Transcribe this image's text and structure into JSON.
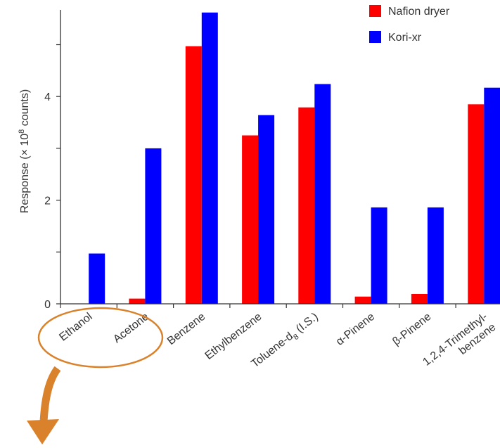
{
  "chart_data": {
    "type": "bar",
    "categories": [
      "Ethanol",
      "Acetone",
      "Benzene",
      "Ethylbenzene",
      "Toluene-d8 (I.S.)",
      "α-Pinene",
      "β-Pinene",
      "1,2,4-Trimethyl- benzene"
    ],
    "category_lines": [
      [
        "Ethanol"
      ],
      [
        "Acetone"
      ],
      [
        "Benzene"
      ],
      [
        "Ethylbenzene"
      ],
      [
        {
          "text": "Toluene-d",
          "sub": "8",
          "after": " (I.S.)"
        }
      ],
      [
        "α-Pinene"
      ],
      [
        "β-Pinene"
      ],
      [
        "1,2,4-Trimethyl-",
        "benzene"
      ]
    ],
    "series": [
      {
        "name": "Nafion dryer",
        "color": "#ff0000",
        "values": [
          0,
          0.1,
          4.97,
          3.25,
          3.79,
          0.14,
          0.19,
          3.85
        ]
      },
      {
        "name": "Kori-xr",
        "color": "#0000ff",
        "values": [
          0.97,
          3.0,
          5.62,
          3.64,
          4.24,
          1.86,
          1.86,
          4.17
        ]
      }
    ],
    "ylabel": {
      "prefix": "Response (× 10",
      "sup": "8",
      "suffix": " counts)"
    },
    "yticks": [
      0,
      2,
      4
    ],
    "ylim": [
      0,
      5.6
    ],
    "legend_position": "top-right",
    "annotations": [
      "orange ellipse around Ethanol and Acetone labels",
      "orange downward arrow"
    ],
    "annotation_color": "#d9822b"
  }
}
